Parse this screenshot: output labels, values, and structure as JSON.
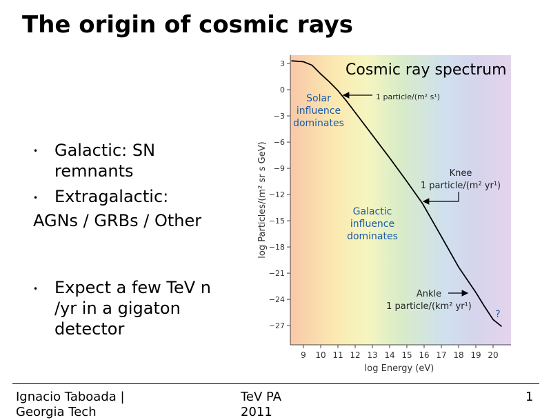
{
  "title": "The origin of cosmic rays",
  "bullets": [
    "Galactic: SN remnants",
    "Extragalactic:",
    "Expect a few TeV n /yr in a gigaton detector"
  ],
  "body_line": "AGNs / GRBs / Other",
  "footer": {
    "left": "Ignacio Taboada | Georgia Tech",
    "center": "TeV PA 2011",
    "page": 1
  },
  "figure": {
    "type": "line",
    "annotation_title": "Cosmic ray spectrum",
    "xlabel": "log Energy (eV)",
    "ylabel": "log Particles/(m² sr s GeV)",
    "xlim": [
      8.24,
      21.04
    ],
    "ylim": [
      -29.2,
      3.95
    ],
    "xticks": [
      9,
      10,
      11,
      12,
      13,
      14,
      15,
      16,
      17,
      18,
      19,
      20
    ],
    "yticks": [
      3,
      0,
      {
        "value": -3,
        "label": "−3"
      },
      {
        "value": -6,
        "label": "−6"
      },
      {
        "value": -9,
        "label": "−9"
      },
      {
        "value": -12,
        "label": "−12"
      },
      {
        "value": -15,
        "label": "−15"
      },
      {
        "value": -18,
        "label": "−18"
      },
      {
        "value": -21,
        "label": "−21"
      },
      {
        "value": -24,
        "label": "−24"
      },
      {
        "value": -27,
        "label": "−27"
      }
    ],
    "curve": {
      "x": [
        8.3,
        9,
        9.5,
        10,
        10.5,
        11,
        11.5,
        12,
        13,
        14,
        15,
        15.9,
        17,
        18,
        19,
        19.5,
        20,
        20.5
      ],
      "y": [
        3.3,
        3.2,
        2.8,
        1.8,
        0.9,
        -0.1,
        -1.3,
        -2.6,
        -5.2,
        -7.8,
        -10.5,
        -13.0,
        -16.8,
        -20.3,
        -23.2,
        -24.8,
        -26.3,
        -27.1
      ]
    },
    "annotations": [
      {
        "lines": [
          "Solar",
          "influence",
          "dominates"
        ]
      },
      {
        "lines": [
          "1 particle/(m² s¹)"
        ]
      },
      {
        "lines": [
          "Knee",
          "1 particle/(m² yr¹)"
        ]
      },
      {
        "lines": [
          "Galactic",
          "influence",
          "dominates"
        ]
      },
      {
        "lines": [
          "Ankle",
          "1 particle/(km² yr¹)"
        ]
      },
      {
        "lines": [
          "?"
        ]
      }
    ]
  }
}
